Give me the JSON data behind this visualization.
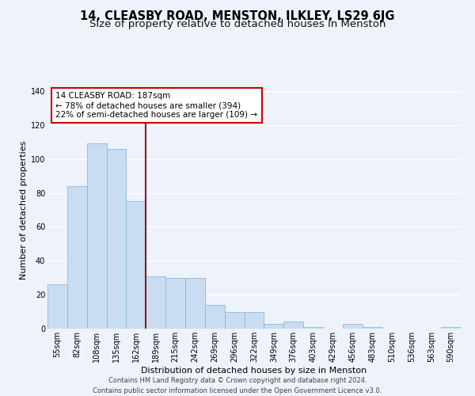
{
  "title": "14, CLEASBY ROAD, MENSTON, ILKLEY, LS29 6JG",
  "subtitle": "Size of property relative to detached houses in Menston",
  "xlabel": "Distribution of detached houses by size in Menston",
  "ylabel": "Number of detached properties",
  "bar_labels": [
    "55sqm",
    "82sqm",
    "108sqm",
    "135sqm",
    "162sqm",
    "189sqm",
    "215sqm",
    "242sqm",
    "269sqm",
    "296sqm",
    "322sqm",
    "349sqm",
    "376sqm",
    "403sqm",
    "429sqm",
    "456sqm",
    "483sqm",
    "510sqm",
    "536sqm",
    "563sqm",
    "590sqm"
  ],
  "bar_values": [
    26,
    84,
    109,
    106,
    75,
    31,
    30,
    30,
    14,
    10,
    10,
    3,
    4,
    1,
    0,
    3,
    1,
    0,
    0,
    0,
    1
  ],
  "bar_color": "#c9ddf2",
  "bar_edge_color": "#7ab0d8",
  "vline_color": "#8b1a1a",
  "annotation_text": "14 CLEASBY ROAD: 187sqm\n← 78% of detached houses are smaller (394)\n22% of semi-detached houses are larger (109) →",
  "annotation_box_color": "#ffffff",
  "annotation_box_edge_color": "#cc0000",
  "ylim": [
    0,
    140
  ],
  "yticks": [
    0,
    20,
    40,
    60,
    80,
    100,
    120,
    140
  ],
  "footer_line1": "Contains HM Land Registry data © Crown copyright and database right 2024.",
  "footer_line2": "Contains public sector information licensed under the Open Government Licence v3.0.",
  "bg_color": "#eef2fb",
  "grid_color": "#ffffff",
  "title_fontsize": 10.5,
  "subtitle_fontsize": 9.5,
  "label_fontsize": 8,
  "tick_fontsize": 7,
  "annotation_fontsize": 7.5,
  "footer_fontsize": 6
}
